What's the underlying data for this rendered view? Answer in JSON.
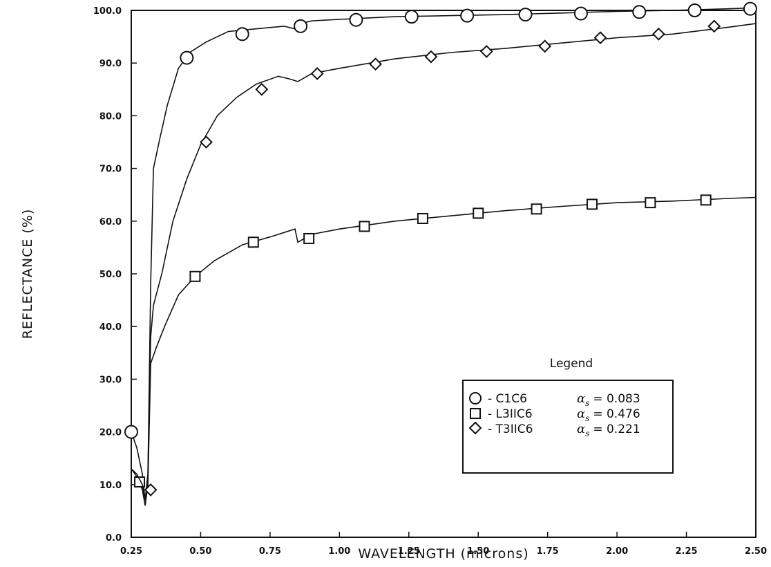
{
  "chart_data": {
    "type": "line",
    "xlabel": "WAVELENGTH (microns)",
    "ylabel": "REFLECTANCE (%)",
    "xlim": [
      0.25,
      2.5
    ],
    "ylim": [
      0.0,
      100.0
    ],
    "x_ticks": [
      "0.25",
      "0.50",
      "0.75",
      "1.00",
      "1.25",
      "1.50",
      "1.75",
      "2.00",
      "2.25",
      "2.50"
    ],
    "x_tick_values": [
      0.25,
      0.5,
      0.75,
      1.0,
      1.25,
      1.5,
      1.75,
      2.0,
      2.25,
      2.5
    ],
    "y_ticks": [
      "0.0",
      "10.0",
      "20.0",
      "30.0",
      "40.0",
      "50.0",
      "60.0",
      "70.0",
      "80.0",
      "90.0",
      "100.0"
    ],
    "y_tick_values": [
      0,
      10,
      20,
      30,
      40,
      50,
      60,
      70,
      80,
      90,
      100
    ],
    "grid": false,
    "legend_placement": "bottom-right",
    "legend": {
      "title": "Legend",
      "entries": [
        {
          "marker": "circle",
          "name": "C1C6",
          "label": "- C1C6",
          "alpha_value": "= 0.083"
        },
        {
          "marker": "square",
          "name": "L3IIC6",
          "label": "- L3IIC6",
          "alpha_value": "= 0.476"
        },
        {
          "marker": "diamond",
          "name": "T3IIC6",
          "label": "- T3IIC6",
          "alpha_value": "= 0.221"
        }
      ],
      "alpha_symbol": "α",
      "alpha_subscript": "s"
    },
    "series": [
      {
        "name": "C1C6",
        "marker": "circle",
        "line": {
          "x": [
            0.25,
            0.27,
            0.29,
            0.3,
            0.31,
            0.32,
            0.33,
            0.35,
            0.38,
            0.42,
            0.46,
            0.52,
            0.6,
            0.7,
            0.8,
            0.84,
            0.86,
            0.9,
            1.0,
            1.2,
            1.4,
            1.6,
            1.8,
            2.0,
            2.2,
            2.4,
            2.5
          ],
          "y": [
            20,
            17,
            12,
            7,
            12,
            48,
            70,
            75,
            82,
            89,
            92,
            94,
            96,
            96.5,
            97,
            96.5,
            97.5,
            98,
            98.3,
            98.8,
            99,
            99.2,
            99.5,
            99.8,
            100,
            100.3,
            100.5
          ]
        },
        "markers": {
          "x": [
            0.25,
            0.45,
            0.65,
            0.86,
            1.06,
            1.26,
            1.46,
            1.67,
            1.87,
            2.08,
            2.28,
            2.48
          ],
          "y": [
            20.0,
            91.0,
            95.5,
            97.0,
            98.2,
            98.8,
            99.0,
            99.2,
            99.4,
            99.7,
            100.0,
            100.3
          ]
        }
      },
      {
        "name": "L3IIC6",
        "marker": "square",
        "line": {
          "x": [
            0.25,
            0.27,
            0.29,
            0.3,
            0.31,
            0.32,
            0.34,
            0.37,
            0.42,
            0.48,
            0.55,
            0.65,
            0.75,
            0.84,
            0.85,
            0.9,
            1.0,
            1.2,
            1.4,
            1.6,
            1.8,
            2.0,
            2.2,
            2.4,
            2.5
          ],
          "y": [
            13,
            11.5,
            9,
            6,
            10,
            33,
            36,
            40,
            46,
            49.5,
            52.5,
            55.5,
            57,
            58.5,
            56,
            57.5,
            58.5,
            60,
            61,
            62,
            62.8,
            63.5,
            63.8,
            64.3,
            64.5
          ]
        },
        "markers": {
          "x": [
            0.28,
            0.48,
            0.69,
            0.89,
            1.09,
            1.3,
            1.5,
            1.71,
            1.91,
            2.12,
            2.32
          ],
          "y": [
            10.5,
            49.5,
            56.0,
            56.7,
            59.0,
            60.5,
            61.5,
            62.3,
            63.2,
            63.5,
            64.0
          ]
        }
      },
      {
        "name": "T3IIC6",
        "marker": "diamond",
        "line": {
          "x": [
            0.25,
            0.27,
            0.29,
            0.3,
            0.31,
            0.32,
            0.33,
            0.36,
            0.4,
            0.45,
            0.5,
            0.56,
            0.63,
            0.7,
            0.78,
            0.82,
            0.85,
            0.9,
            1.0,
            1.2,
            1.4,
            1.6,
            1.8,
            2.0,
            2.2,
            2.4,
            2.5
          ],
          "y": [
            13,
            12,
            10,
            7,
            12,
            38,
            44,
            50,
            60,
            68,
            74.5,
            80,
            83.5,
            86,
            87.5,
            87,
            86.5,
            88,
            89,
            90.8,
            92,
            92.8,
            93.8,
            94.8,
            95.5,
            96.8,
            97.5
          ]
        },
        "markers": {
          "x": [
            0.32,
            0.52,
            0.72,
            0.92,
            1.13,
            1.33,
            1.53,
            1.74,
            1.94,
            2.15,
            2.35
          ],
          "y": [
            9.0,
            75.0,
            85.0,
            88.0,
            89.8,
            91.2,
            92.2,
            93.2,
            94.8,
            95.5,
            97.0
          ]
        }
      }
    ]
  }
}
